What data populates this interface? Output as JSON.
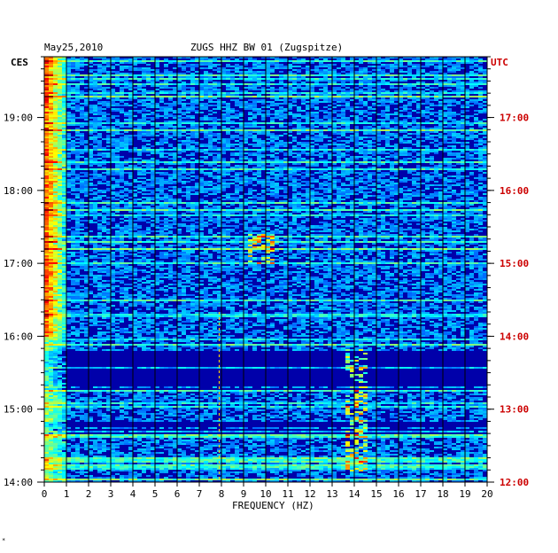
{
  "header": {
    "date": "May25,2010",
    "station": "ZUGS HHZ BW 01 (Zugspitze)"
  },
  "colors": {
    "local_axis": "#000000",
    "utc_axis": "#cc0000",
    "background": "#0000aa"
  },
  "chart_data": {
    "type": "heatmap",
    "title": "ZUGS HHZ BW 01 (Zugspitze)",
    "subtitle": "May25,2010",
    "xlabel": "FREQUENCY (HZ)",
    "x_range": [
      0,
      20
    ],
    "x_ticks": [
      "0",
      "1",
      "2",
      "3",
      "4",
      "5",
      "6",
      "7",
      "8",
      "9",
      "10",
      "11",
      "12",
      "13",
      "14",
      "15",
      "16",
      "17",
      "18",
      "19",
      "20"
    ],
    "left_axis_label": "CES",
    "right_axis_label": "UTC",
    "left_ticks": [
      "19:00",
      "18:00",
      "17:00",
      "16:00",
      "15:00",
      "14:00"
    ],
    "right_ticks": [
      "17:00",
      "16:00",
      "15:00",
      "14:00",
      "13:00",
      "12:00"
    ],
    "time_range_local": [
      "14:00",
      "19:50"
    ],
    "grid": true,
    "features": [
      {
        "description": "strong low-frequency energy",
        "freq_range_hz": [
          0,
          1.5
        ],
        "time_range_local": [
          "16:00",
          "19:50"
        ]
      },
      {
        "description": "narrow line",
        "freq_hz": 7.9,
        "time_range_local": [
          "14:00",
          "16:20"
        ]
      },
      {
        "description": "signal patch",
        "freq_range_hz": [
          9.2,
          10.2
        ],
        "time_range_local": [
          "17:00",
          "17:25"
        ]
      },
      {
        "description": "signal patch",
        "freq_range_hz": [
          13.5,
          14.5
        ],
        "time_range_local": [
          "14:10",
          "15:50"
        ]
      }
    ]
  }
}
